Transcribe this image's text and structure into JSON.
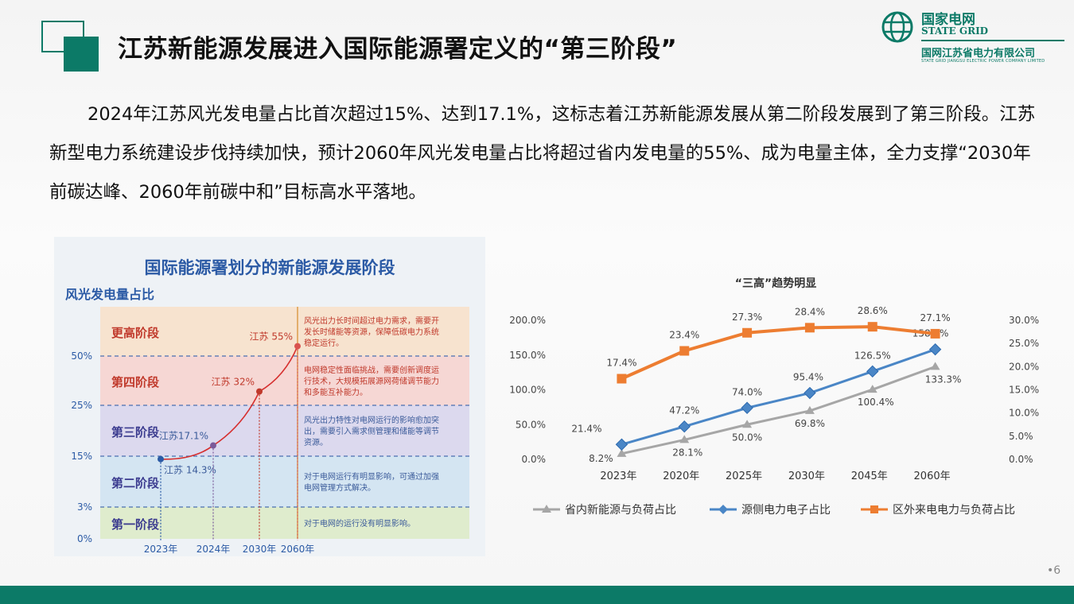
{
  "slide": {
    "title": "江苏新能源发展进入国际能源署定义的“第三阶段”",
    "paragraph": "2024年江苏风光发电量占比首次超过15%、达到17.1%，这标志着江苏新能源发展从第二阶段发展到了第三阶段。江苏新型电力系统建设步伐持续加快，预计2060年风光发电量占比将超过省内发电量的55%、成为电量主体，全力支撑“2030年前碳达峰、2060年前碳中和”目标高水平落地。",
    "page_number": "•6"
  },
  "logo": {
    "name": "国家电网",
    "english": "STATE GRID",
    "company": "国网江苏省电力有限公司",
    "company_en": "STATE GRID JIANGSU ELECTRIC POWER COMPANY LIMITED",
    "color": "#0c7a67"
  },
  "colors": {
    "brand": "#0c7a67",
    "gray_series": "#a6a6a6",
    "blue_series": "#4a86c6",
    "orange_series": "#ed7d31"
  },
  "chart_data": [
    {
      "type": "area",
      "title": "国际能源署划分的新能源发展阶段",
      "ylabel": "风光发电量占比",
      "y_ticks": [
        "0%",
        "3%",
        "15%",
        "25%",
        "50%"
      ],
      "stages": [
        {
          "name": "第一阶段",
          "description": "对于电网的运行没有明显影响。",
          "color": "#dfeccd"
        },
        {
          "name": "第二阶段",
          "description": "对于电网运行有明显影响，可通过加强电网管理方式解决。",
          "color": "#d4e5f2"
        },
        {
          "name": "第三阶段",
          "description": "风光出力特性对电网运行的影响愈加突出，需要引入需求侧管理和储能等调节资源。",
          "color": "#dcd9ee"
        },
        {
          "name": "第四阶段",
          "description": "电网稳定性面临挑战，需要创新调度运行技术，大规模拓展源网荷储调节能力和多能互补能力。",
          "color": "#f6d7d4"
        },
        {
          "name": "更高阶段",
          "description": "风光出力长时间超过电力需求，需要开发长时储能等资源，保障低碳电力系统稳定运行。",
          "color": "#f7e3cf"
        }
      ],
      "x_ticks": [
        "2023年",
        "2024年",
        "2030年",
        "2060年"
      ],
      "points": [
        {
          "x": "2023年",
          "y": 14.3,
          "label": "江苏 14.3%"
        },
        {
          "x": "2024年",
          "y": 17.1,
          "label": "江苏17.1%"
        },
        {
          "x": "2030年",
          "y": 32,
          "label": "江苏 32%"
        },
        {
          "x": "2060年",
          "y": 55,
          "label": "江苏 55%"
        }
      ]
    },
    {
      "type": "line",
      "title": "“三高”趋势明显",
      "categories": [
        "2023年",
        "2020年",
        "2025年",
        "2030年",
        "2045年",
        "2060年"
      ],
      "y_left_ticks": [
        "0.0%",
        "50.0%",
        "100.0%",
        "150.0%",
        "200.0%"
      ],
      "y_right_ticks": [
        "0.0%",
        "5.0%",
        "10.0%",
        "15.0%",
        "20.0%",
        "25.0%",
        "30.0%"
      ],
      "ylim_left": [
        0,
        200
      ],
      "ylim_right": [
        0,
        30
      ],
      "series": [
        {
          "name": "省内新能源与负荷占比",
          "axis": "left",
          "values": [
            8.2,
            28.1,
            50.0,
            69.8,
            100.4,
            133.3
          ],
          "labels": [
            "8.2%",
            "28.1%",
            "50.0%",
            "69.8%",
            "100.4%",
            "133.3%"
          ]
        },
        {
          "name": "源侧电力电子占比",
          "axis": "left",
          "values": [
            21.4,
            47.2,
            74.0,
            95.4,
            126.5,
            158.1
          ],
          "labels": [
            "21.4%",
            "47.2%",
            "74.0%",
            "95.4%",
            "126.5%",
            "158.1%"
          ]
        },
        {
          "name": "区外来电电力与负荷占比",
          "axis": "right",
          "values": [
            17.4,
            23.4,
            27.3,
            28.4,
            28.6,
            27.1
          ],
          "labels": [
            "17.4%",
            "23.4%",
            "27.3%",
            "28.4%",
            "28.6%",
            "27.1%"
          ]
        }
      ]
    }
  ]
}
